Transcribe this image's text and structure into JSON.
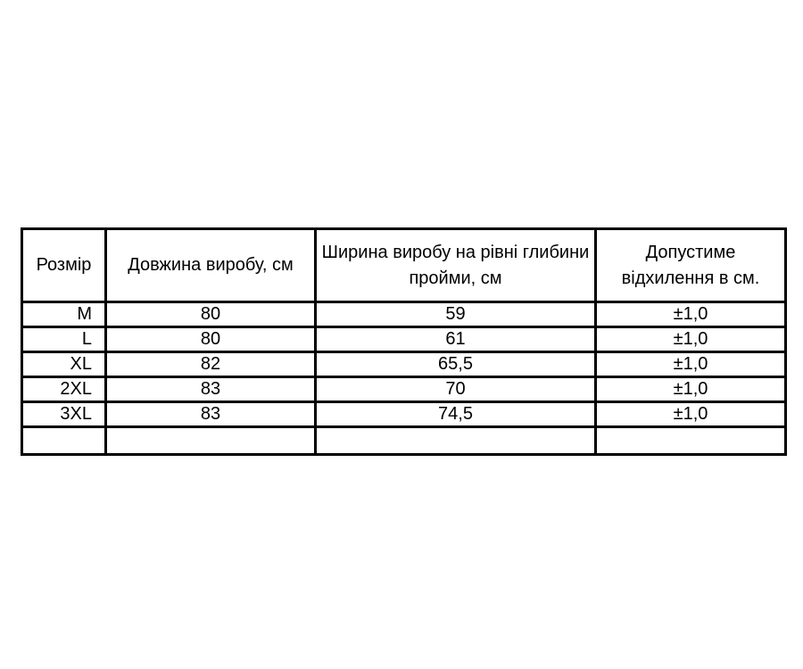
{
  "page": {
    "background": "#ffffff"
  },
  "size_table": {
    "colors": {
      "border": "#000000",
      "text": "#000000",
      "background": "#ffffff"
    },
    "headers": [
      {
        "lines": [
          "Розмір"
        ]
      },
      {
        "lines": [
          "Довжина виробу, см"
        ]
      },
      {
        "lines": [
          "Ширина виробу на рівні глибини",
          "пройми, см"
        ]
      },
      {
        "lines": [
          "Допустиме",
          "відхилення в см."
        ]
      }
    ],
    "rows": [
      {
        "size": "M",
        "length": "80",
        "width": "59",
        "deviation": "±1,0"
      },
      {
        "size": "L",
        "length": "80",
        "width": "61",
        "deviation": "±1,0"
      },
      {
        "size": "XL",
        "length": "82",
        "width": "65,5",
        "deviation": "±1,0"
      },
      {
        "size": "2XL",
        "length": "83",
        "width": "70",
        "deviation": "±1,0"
      },
      {
        "size": "3XL",
        "length": "83",
        "width": "74,5",
        "deviation": "±1,0"
      },
      {
        "size": "",
        "length": "",
        "width": "",
        "deviation": ""
      }
    ]
  }
}
